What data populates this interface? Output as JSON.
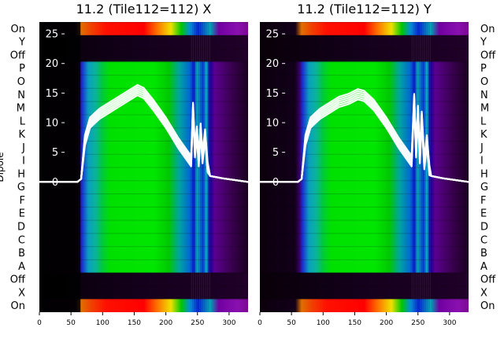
{
  "chart_data": [
    {
      "type": "heatmap",
      "title": "11.2 (Tile112=112) X",
      "ylabel": "Dipole",
      "dipole_labels": [
        "On",
        "Y",
        "Off",
        "P",
        "O",
        "N",
        "M",
        "L",
        "K",
        "J",
        "I",
        "H",
        "G",
        "F",
        "E",
        "D",
        "C",
        "B",
        "A",
        "Off",
        "X",
        "On"
      ],
      "x_ticks": [
        0,
        50,
        100,
        150,
        200,
        250,
        300
      ],
      "xlim": [
        0,
        330
      ],
      "y_ticks": [
        0,
        5,
        10,
        15,
        20,
        25
      ],
      "ylim": [
        -22,
        27
      ],
      "overlay_line": {
        "x": [
          0,
          60,
          66,
          72,
          80,
          95,
          110,
          125,
          140,
          155,
          165,
          180,
          200,
          220,
          240,
          243,
          246,
          249,
          252,
          255,
          258,
          262,
          266,
          270,
          290,
          330
        ],
        "y": [
          0,
          0,
          0.5,
          7,
          10,
          11.5,
          12.5,
          13.5,
          14.5,
          15.5,
          15,
          13,
          10,
          6.5,
          3.5,
          12.5,
          5,
          8.5,
          3.5,
          9,
          4,
          8,
          2.5,
          1,
          0.6,
          0
        ]
      },
      "colormap": "nipy_spectral"
    },
    {
      "type": "heatmap",
      "title": "11.2 (Tile112=112) Y",
      "ylabel": "",
      "dipole_labels": [
        "On",
        "Y",
        "Off",
        "P",
        "O",
        "N",
        "M",
        "L",
        "K",
        "J",
        "I",
        "H",
        "G",
        "F",
        "E",
        "D",
        "C",
        "B",
        "A",
        "Off",
        "X",
        "On"
      ],
      "x_ticks": [
        0,
        50,
        100,
        150,
        200,
        250,
        300
      ],
      "xlim": [
        0,
        330
      ],
      "y_ticks": [
        0,
        5,
        10,
        15,
        20,
        25
      ],
      "ylim": [
        -22,
        27
      ],
      "overlay_line": {
        "x": [
          0,
          60,
          66,
          72,
          80,
          95,
          110,
          125,
          140,
          155,
          165,
          180,
          200,
          220,
          240,
          244,
          247,
          250,
          253,
          256,
          260,
          264,
          268,
          271,
          290,
          330
        ],
        "y": [
          0,
          0,
          0.5,
          7,
          10,
          11.5,
          12.5,
          13.5,
          14,
          14.8,
          14.5,
          13,
          10,
          6.5,
          3.5,
          14,
          5,
          12,
          4,
          11,
          3,
          7,
          2,
          1,
          0.6,
          0
        ]
      },
      "colormap": "nipy_spectral"
    }
  ]
}
